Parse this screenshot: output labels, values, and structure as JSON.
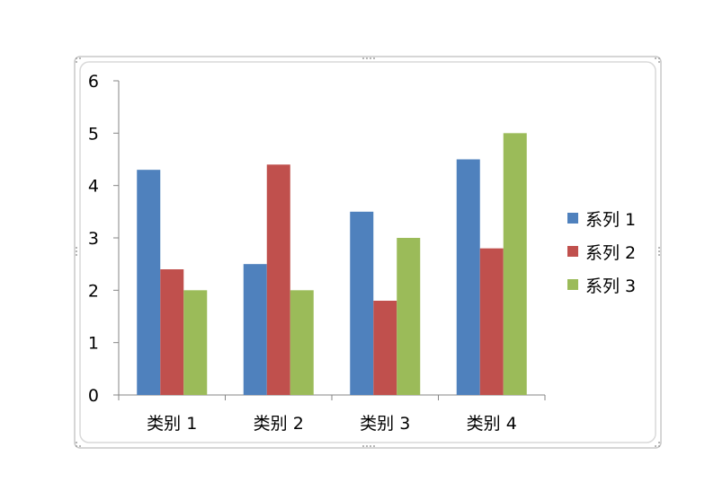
{
  "chart_data": {
    "type": "bar",
    "categories": [
      "类别 1",
      "类别 2",
      "类别 3",
      "类别 4"
    ],
    "series": [
      {
        "name": "系列 1",
        "values": [
          4.3,
          2.5,
          3.5,
          4.5
        ],
        "color": "#4F81BD"
      },
      {
        "name": "系列 2",
        "values": [
          2.4,
          4.4,
          1.8,
          2.8
        ],
        "color": "#C0504D"
      },
      {
        "name": "系列 3",
        "values": [
          2.0,
          2.0,
          3.0,
          5.0
        ],
        "color": "#9BBB59"
      }
    ],
    "y_ticks": [
      "0",
      "1",
      "2",
      "3",
      "4",
      "5",
      "6"
    ],
    "ylim": [
      0,
      6
    ],
    "grid": false,
    "legend_position": "right",
    "title": "",
    "xlabel": "",
    "ylabel": ""
  }
}
